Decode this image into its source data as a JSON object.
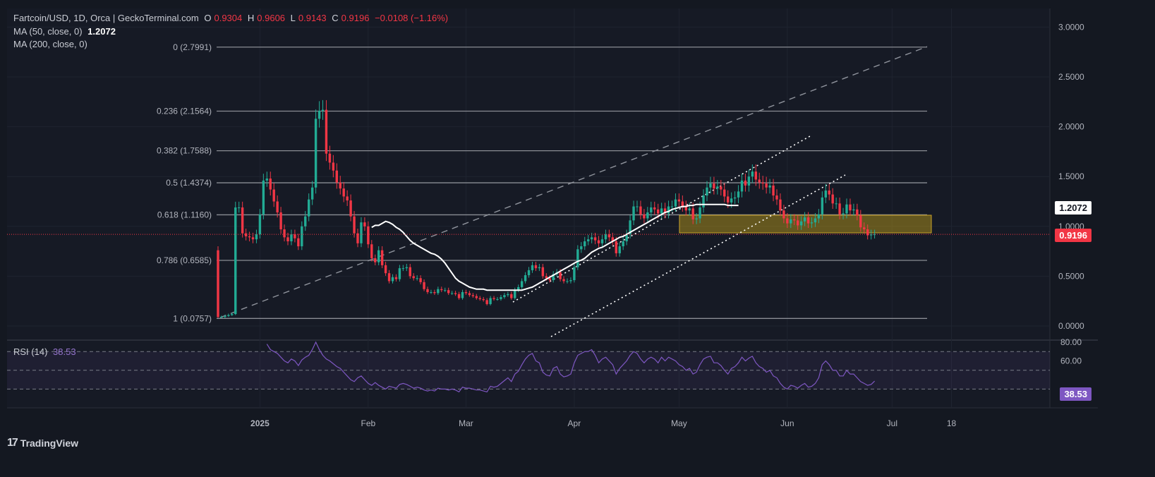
{
  "header": {
    "symbol": "Fartcoin/USD, 1D, Orca | GeckoTerminal.com",
    "open_label": "O",
    "open": "0.9304",
    "high_label": "H",
    "high": "0.9606",
    "low_label": "L",
    "low": "0.9143",
    "close_label": "C",
    "close": "0.9196",
    "change": "−0.0108 (−1.16%)",
    "ma50_label": "MA (50, close, 0)",
    "ma50_value": "1.2072",
    "ma200_label": "MA (200, close, 0)"
  },
  "rsi_panel": {
    "label": "RSI (14)",
    "value": "38.53"
  },
  "price_tags": {
    "ma50": "1.2072",
    "last": "0.9196",
    "rsi": "38.53"
  },
  "branding": {
    "logo_text": "TradingView"
  },
  "colors": {
    "up": "#22ab94",
    "down": "#f23645",
    "ma": "#ffffff",
    "rsi": "#7e57c2",
    "zone": "#a68a1c"
  },
  "chart_data": {
    "type": "candlestick",
    "title": "Fartcoin/USD, 1D, Orca",
    "ylim": [
      -0.05,
      3.15
    ],
    "y_ticks": [
      "3.0000",
      "2.5000",
      "2.0000",
      "1.5000",
      "1.0000",
      "0.5000",
      "0.0000"
    ],
    "x_ticks": [
      {
        "label": "2025",
        "day": 12
      },
      {
        "label": "Feb",
        "day": 43
      },
      {
        "label": "Mar",
        "day": 71
      },
      {
        "label": "Apr",
        "day": 102
      },
      {
        "label": "May",
        "day": 132
      },
      {
        "label": "Jun",
        "day": 163
      },
      {
        "label": "Jul",
        "day": 193
      },
      {
        "label": "18",
        "day": 210
      }
    ],
    "fib_levels": [
      {
        "label": "0 (2.7991)",
        "value": 2.7991
      },
      {
        "label": "0.236 (2.1564)",
        "value": 2.1564
      },
      {
        "label": "0.382 (1.7588)",
        "value": 1.7588
      },
      {
        "label": "0.5 (1.4374)",
        "value": 1.4374
      },
      {
        "label": "0.618 (1.1160)",
        "value": 1.116
      },
      {
        "label": "0.786 (0.6585)",
        "value": 0.6585
      },
      {
        "label": "1 (0.0757)",
        "value": 0.0757
      }
    ],
    "closes": [
      0.09,
      0.09,
      0.1,
      0.11,
      0.12,
      1.19,
      1.19,
      0.93,
      0.9,
      0.89,
      0.87,
      0.92,
      1.12,
      1.46,
      1.48,
      1.37,
      1.25,
      1.14,
      0.97,
      0.89,
      0.85,
      0.92,
      0.88,
      0.8,
      1.0,
      1.1,
      1.27,
      1.39,
      2.08,
      2.16,
      2.17,
      1.73,
      1.64,
      1.56,
      1.44,
      1.38,
      1.3,
      1.26,
      1.1,
      0.93,
      0.83,
      1.04,
      1.0,
      0.82,
      0.68,
      0.64,
      0.76,
      0.61,
      0.53,
      0.45,
      0.49,
      0.47,
      0.58,
      0.58,
      0.59,
      0.5,
      0.48,
      0.48,
      0.44,
      0.37,
      0.34,
      0.34,
      0.33,
      0.37,
      0.36,
      0.36,
      0.33,
      0.33,
      0.32,
      0.28,
      0.34,
      0.33,
      0.31,
      0.3,
      0.28,
      0.27,
      0.26,
      0.22,
      0.28,
      0.27,
      0.27,
      0.29,
      0.31,
      0.32,
      0.28,
      0.36,
      0.39,
      0.45,
      0.51,
      0.56,
      0.61,
      0.58,
      0.59,
      0.5,
      0.48,
      0.46,
      0.52,
      0.54,
      0.47,
      0.45,
      0.45,
      0.46,
      0.59,
      0.77,
      0.8,
      0.85,
      0.87,
      0.89,
      0.86,
      0.83,
      0.87,
      0.92,
      0.89,
      0.85,
      0.73,
      0.8,
      0.85,
      0.92,
      1.06,
      1.2,
      1.2,
      1.12,
      1.08,
      1.14,
      1.19,
      1.17,
      1.13,
      1.18,
      1.13,
      1.2,
      1.2,
      1.27,
      1.25,
      1.2,
      1.16,
      1.18,
      1.07,
      1.08,
      1.19,
      1.31,
      1.39,
      1.43,
      1.38,
      1.4,
      1.37,
      1.3,
      1.24,
      1.28,
      1.29,
      1.35,
      1.46,
      1.41,
      1.5,
      1.55,
      1.47,
      1.44,
      1.43,
      1.39,
      1.41,
      1.31,
      1.27,
      1.16,
      1.08,
      1.03,
      1.07,
      1.06,
      1.01,
      1.05,
      1.09,
      1.03,
      1.04,
      1.08,
      1.12,
      1.29,
      1.36,
      1.32,
      1.23,
      1.23,
      1.12,
      1.13,
      1.22,
      1.16,
      1.17,
      1.11,
      0.99,
      0.97,
      0.91,
      0.92,
      0.92
    ],
    "ma50": [
      null,
      null,
      null,
      null,
      null,
      null,
      null,
      null,
      null,
      null,
      null,
      null,
      null,
      null,
      null,
      null,
      null,
      null,
      null,
      null,
      null,
      null,
      null,
      null,
      null,
      null,
      null,
      null,
      null,
      null,
      null,
      null,
      null,
      null,
      null,
      null,
      null,
      null,
      null,
      null,
      null,
      null,
      null,
      null,
      null,
      null,
      null,
      null,
      null,
      0.99,
      1.01,
      1.01,
      1.03,
      1.05,
      1.04,
      1.02,
      0.99,
      0.97,
      0.94,
      0.9,
      0.86,
      0.83,
      0.81,
      0.79,
      0.77,
      0.75,
      0.73,
      0.72,
      0.7,
      0.67,
      0.63,
      0.58,
      0.53,
      0.48,
      0.45,
      0.43,
      0.41,
      0.39,
      0.38,
      0.37,
      0.37,
      0.37,
      0.36,
      0.36,
      0.36,
      0.36,
      0.36,
      0.36,
      0.36,
      0.36,
      0.36,
      0.36,
      0.36,
      0.37,
      0.38,
      0.39,
      0.41,
      0.43,
      0.45,
      0.47,
      0.49,
      0.51,
      0.53,
      0.55,
      0.57,
      0.59,
      0.61,
      0.63,
      0.65,
      0.66,
      0.68,
      0.71,
      0.74,
      0.76,
      0.78,
      0.79,
      0.81,
      0.83,
      0.85,
      0.87,
      0.89,
      0.9,
      0.92,
      0.94,
      0.96,
      0.98,
      1.0,
      1.02,
      1.04,
      1.06,
      1.08,
      1.1,
      1.12,
      1.14,
      1.15,
      1.17,
      1.18,
      1.19,
      1.2,
      1.2,
      1.21,
      1.21,
      1.22,
      1.22,
      1.22,
      1.22,
      1.22,
      1.22,
      1.22,
      1.22,
      1.22,
      1.21,
      1.21,
      1.21,
      1.21
    ],
    "ma50_start_day": 44,
    "rsi": [
      null,
      null,
      null,
      null,
      null,
      null,
      null,
      null,
      null,
      null,
      null,
      null,
      null,
      null,
      78,
      72,
      70,
      68,
      64,
      60,
      58,
      62,
      60,
      55,
      61,
      64,
      66,
      72,
      80,
      72,
      66,
      62,
      60,
      57,
      54,
      52,
      48,
      44,
      40,
      38,
      42,
      44,
      40,
      36,
      34,
      37,
      34,
      32,
      30,
      33,
      32,
      31,
      35,
      36,
      35,
      33,
      31,
      32,
      31,
      29,
      28,
      29,
      28,
      31,
      30,
      30,
      29,
      30,
      29,
      27,
      32,
      31,
      31,
      30,
      29,
      29,
      28,
      27,
      33,
      32,
      33,
      36,
      39,
      42,
      38,
      46,
      49,
      56,
      62,
      66,
      68,
      60,
      58,
      48,
      45,
      44,
      52,
      54,
      46,
      43,
      44,
      46,
      58,
      66,
      68,
      70,
      70,
      72,
      66,
      58,
      62,
      64,
      60,
      56,
      46,
      52,
      56,
      60,
      66,
      70,
      68,
      62,
      58,
      62,
      64,
      62,
      58,
      64,
      60,
      64,
      62,
      60,
      56,
      54,
      50,
      52,
      46,
      48,
      56,
      62,
      64,
      65,
      58,
      58,
      55,
      50,
      46,
      52,
      54,
      58,
      64,
      60,
      63,
      65,
      58,
      54,
      52,
      48,
      50,
      44,
      42,
      36,
      32,
      30,
      34,
      33,
      31,
      34,
      36,
      32,
      33,
      36,
      42,
      56,
      60,
      56,
      50,
      50,
      44,
      44,
      50,
      46,
      46,
      42,
      38,
      36,
      34,
      35,
      38.53
    ]
  }
}
